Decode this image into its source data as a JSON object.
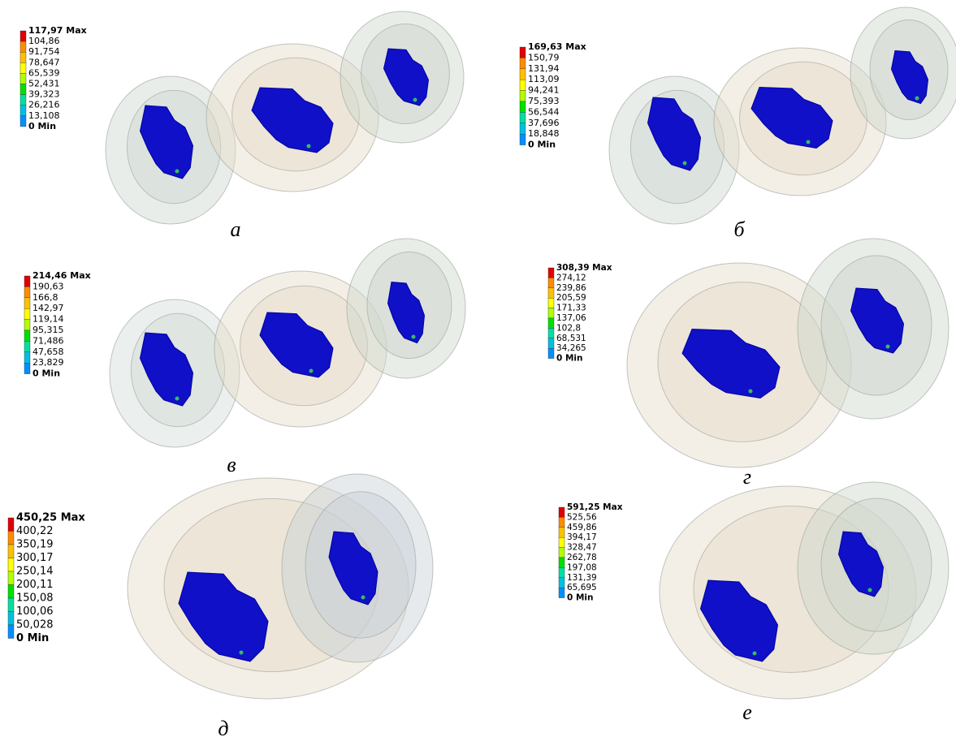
{
  "panels": [
    {
      "legend": [
        "117,97 Max",
        "104,86",
        "91,754",
        "78,647",
        "65,539",
        "52,431",
        "39,323",
        "26,216",
        "13,108",
        "0 Min"
      ],
      "caption": "а"
    },
    {
      "legend": [
        "169,63 Max",
        "150,79",
        "131,94",
        "113,09",
        "94,241",
        "75,393",
        "56,544",
        "37,696",
        "18,848",
        "0 Min"
      ],
      "caption": "б"
    },
    {
      "legend": [
        "214,46 Max",
        "190,63",
        "166,8",
        "142,97",
        "119,14",
        "95,315",
        "71,486",
        "47,658",
        "23,829",
        "0 Min"
      ],
      "caption": "в"
    },
    {
      "legend": [
        "308,39 Max",
        "274,12",
        "239,86",
        "205,59",
        "171,33",
        "137,06",
        "102,8",
        "68,531",
        "34,265",
        "0 Min"
      ],
      "caption": "г"
    },
    {
      "legend": [
        "450,25 Max",
        "400,22",
        "350,19",
        "300,17",
        "250,14",
        "200,11",
        "150,08",
        "100,06",
        "50,028",
        "0 Min"
      ],
      "caption": "д"
    },
    {
      "legend": [
        "591,25 Max",
        "525,56",
        "459,86",
        "394,17",
        "328,47",
        "262,78",
        "197,08",
        "131,39",
        "65,695",
        "0 Min"
      ],
      "caption": "е"
    }
  ]
}
